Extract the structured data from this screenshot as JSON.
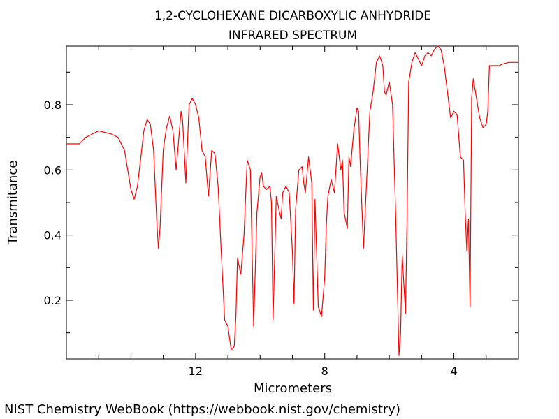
{
  "chart_data": {
    "type": "line",
    "title_lines": [
      "1,2-CYCLOHEXANE DICARBOXYLIC ANHYDRIDE",
      "INFRARED SPECTRUM"
    ],
    "xlabel": "Micrometers",
    "ylabel": "Transmitance",
    "xlim": [
      16,
      2
    ],
    "ylim": [
      0.02,
      0.98
    ],
    "x_reversed": true,
    "x_ticks": [
      12,
      8,
      4
    ],
    "x_minor_ticks": [
      15,
      14,
      13,
      11,
      10,
      9,
      7,
      6,
      5,
      3
    ],
    "y_ticks": [
      0.2,
      0.4,
      0.6,
      0.8
    ],
    "y_minor_ticks": [
      0.1,
      0.3,
      0.5,
      0.7,
      0.9
    ],
    "line_color": "#ff0000",
    "series": [
      {
        "x": [
          16.0,
          15.6,
          15.4,
          15.2,
          15.0,
          14.8,
          14.6,
          14.4,
          14.2,
          14.0,
          13.9,
          13.8,
          13.6,
          13.5,
          13.4,
          13.3,
          13.2,
          13.15,
          13.1,
          13.0,
          12.9,
          12.8,
          12.7,
          12.6,
          12.5,
          12.45,
          12.4,
          12.3,
          12.2,
          12.1,
          12.0,
          11.9,
          11.85,
          11.8,
          11.7,
          11.6,
          11.5,
          11.4,
          11.3,
          11.2,
          11.1,
          11.0,
          10.9,
          10.85,
          10.8,
          10.75,
          10.7,
          10.6,
          10.5,
          10.4,
          10.3,
          10.2,
          10.1,
          10.0,
          9.95,
          9.9,
          9.8,
          9.7,
          9.65,
          9.6,
          9.5,
          9.4,
          9.35,
          9.3,
          9.2,
          9.1,
          9.0,
          8.95,
          8.9,
          8.8,
          8.7,
          8.65,
          8.6,
          8.5,
          8.4,
          8.35,
          8.3,
          8.2,
          8.1,
          8.0,
          7.95,
          7.9,
          7.8,
          7.7,
          7.6,
          7.55,
          7.5,
          7.45,
          7.4,
          7.3,
          7.25,
          7.2,
          7.1,
          7.0,
          6.95,
          6.9,
          6.8,
          6.6,
          6.5,
          6.4,
          6.3,
          6.2,
          6.15,
          6.1,
          6.0,
          5.9,
          5.8,
          5.7,
          5.65,
          5.6,
          5.5,
          5.45,
          5.4,
          5.3,
          5.2,
          5.1,
          5.0,
          4.9,
          4.8,
          4.7,
          4.6,
          4.5,
          4.4,
          4.3,
          4.2,
          4.1,
          4.0,
          3.9,
          3.8,
          3.7,
          3.65,
          3.6,
          3.55,
          3.5,
          3.45,
          3.4,
          3.3,
          3.2,
          3.1,
          3.0,
          2.95,
          2.9,
          2.8,
          2.6,
          2.5,
          2.3,
          2.2,
          2.0
        ],
        "y": [
          0.68,
          0.68,
          0.7,
          0.71,
          0.72,
          0.715,
          0.71,
          0.7,
          0.66,
          0.54,
          0.51,
          0.55,
          0.72,
          0.755,
          0.74,
          0.66,
          0.44,
          0.36,
          0.42,
          0.66,
          0.73,
          0.765,
          0.72,
          0.6,
          0.72,
          0.78,
          0.75,
          0.56,
          0.8,
          0.82,
          0.8,
          0.76,
          0.71,
          0.66,
          0.64,
          0.52,
          0.66,
          0.65,
          0.55,
          0.34,
          0.14,
          0.12,
          0.05,
          0.05,
          0.06,
          0.15,
          0.33,
          0.28,
          0.4,
          0.63,
          0.6,
          0.12,
          0.47,
          0.58,
          0.59,
          0.55,
          0.54,
          0.55,
          0.5,
          0.14,
          0.52,
          0.47,
          0.45,
          0.53,
          0.55,
          0.53,
          0.35,
          0.19,
          0.48,
          0.6,
          0.61,
          0.56,
          0.53,
          0.64,
          0.56,
          0.17,
          0.51,
          0.18,
          0.15,
          0.27,
          0.43,
          0.52,
          0.57,
          0.53,
          0.68,
          0.64,
          0.6,
          0.63,
          0.47,
          0.42,
          0.64,
          0.61,
          0.72,
          0.79,
          0.78,
          0.62,
          0.36,
          0.78,
          0.84,
          0.93,
          0.95,
          0.92,
          0.84,
          0.83,
          0.87,
          0.8,
          0.45,
          0.03,
          0.1,
          0.34,
          0.16,
          0.46,
          0.87,
          0.93,
          0.96,
          0.94,
          0.92,
          0.95,
          0.96,
          0.95,
          0.97,
          0.98,
          0.97,
          0.92,
          0.84,
          0.76,
          0.78,
          0.77,
          0.64,
          0.63,
          0.47,
          0.35,
          0.45,
          0.18,
          0.82,
          0.88,
          0.82,
          0.76,
          0.73,
          0.74,
          0.78,
          0.92,
          0.92,
          0.92,
          0.925,
          0.93,
          0.93,
          0.93
        ]
      }
    ]
  },
  "footer": {
    "credit": "NIST Chemistry WebBook (https://webbook.nist.gov/chemistry)"
  }
}
